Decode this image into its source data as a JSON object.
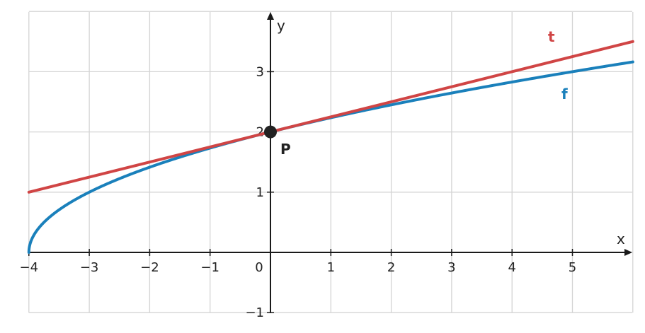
{
  "chart_data": {
    "type": "line",
    "xlabel": "x",
    "ylabel": "y",
    "xlim": [
      -4,
      6
    ],
    "ylim": [
      -1,
      4
    ],
    "grid": true,
    "x_ticks": [
      -4,
      -3,
      -2,
      -1,
      0,
      1,
      2,
      3,
      4,
      5
    ],
    "x_tick_labels": [
      "−4",
      "−3",
      "−2",
      "−1",
      "0",
      "1",
      "2",
      "3",
      "4",
      "5"
    ],
    "y_ticks": [
      -1,
      1,
      2,
      3
    ],
    "y_tick_labels": [
      "−1",
      "1",
      "2",
      "3"
    ],
    "series": [
      {
        "name": "f",
        "color": "#1a80bb",
        "x": [
          -4,
          -3.75,
          -3.5,
          -3,
          -2.5,
          -2,
          -1,
          0,
          1,
          2,
          3,
          4,
          5,
          6
        ],
        "y": [
          0,
          0.5,
          0.707,
          1,
          1.225,
          1.414,
          1.732,
          2,
          2.236,
          2.449,
          2.646,
          2.828,
          3,
          3.162
        ]
      },
      {
        "name": "t",
        "color": "#d04545",
        "x": [
          -4,
          6
        ],
        "y": [
          1,
          3.5
        ]
      }
    ],
    "points": [
      {
        "name": "P",
        "x": 0,
        "y": 2,
        "color": "#222222"
      }
    ]
  }
}
